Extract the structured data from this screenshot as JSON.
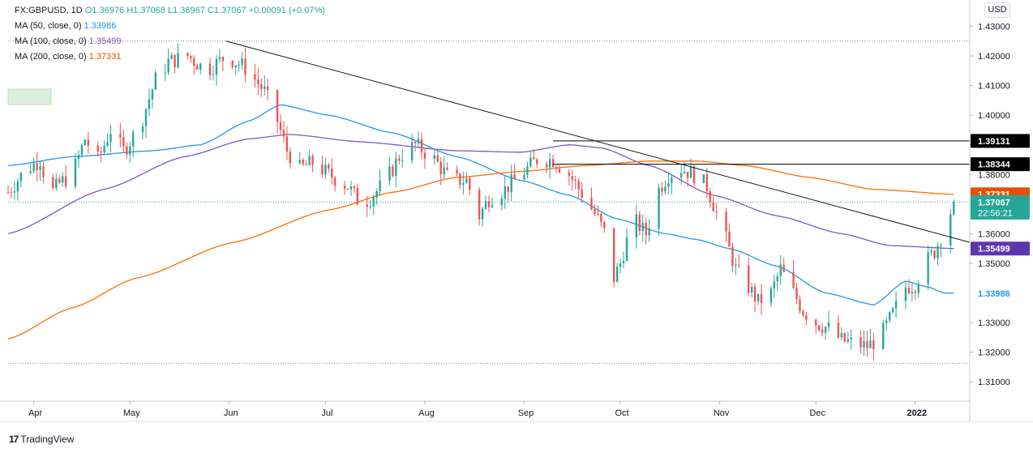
{
  "legend": {
    "symbol": "FX:GBPUSD, 1D",
    "open": "O1.36976",
    "high": "H1.37068",
    "low": "L1.36967",
    "close": "C1.37067",
    "change": "+0.00091 (+0.07%)",
    "ma50_label": "MA (50, close, 0)",
    "ma50_value": "1.33986",
    "ma100_label": "MA (100, close, 0)",
    "ma100_value": "1.35499",
    "ma200_label": "MA (200, close, 0)",
    "ma200_value": "1.37331"
  },
  "currency_button": "USD",
  "footer_brand": "TradingView",
  "chart_data": {
    "type": "candlestick",
    "title": "FX:GBPUSD, 1D",
    "ylim": [
      1.3035,
      1.4375
    ],
    "y_ticks": [
      "1.43000",
      "1.42000",
      "1.41000",
      "1.40000",
      "1.39000",
      "1.38000",
      "1.37000",
      "1.36000",
      "1.35000",
      "1.34000",
      "1.33000",
      "1.32000",
      "1.31000"
    ],
    "y_tick_values": [
      1.43,
      1.42,
      1.41,
      1.4,
      1.39,
      1.38,
      1.37,
      1.36,
      1.35,
      1.34,
      1.33,
      1.32,
      1.31
    ],
    "x_ticks": [
      {
        "label": "Apr",
        "day": 8
      },
      {
        "label": "May",
        "day": 38
      },
      {
        "label": "Jun",
        "day": 69
      },
      {
        "label": "Jul",
        "day": 99
      },
      {
        "label": "Aug",
        "day": 130
      },
      {
        "label": "Sep",
        "day": 161
      },
      {
        "label": "Oct",
        "day": 191
      },
      {
        "label": "Nov",
        "day": 222
      },
      {
        "label": "Dec",
        "day": 252
      },
      {
        "label": "2022",
        "day": 283
      }
    ],
    "day_range": [
      0,
      300
    ],
    "last_day": 295,
    "price_anchors": [
      [
        0,
        1.374
      ],
      [
        5,
        1.381
      ],
      [
        10,
        1.385
      ],
      [
        13,
        1.373
      ],
      [
        16,
        1.377
      ],
      [
        20,
        1.38
      ],
      [
        24,
        1.392
      ],
      [
        28,
        1.385
      ],
      [
        32,
        1.395
      ],
      [
        36,
        1.388
      ],
      [
        41,
        1.396
      ],
      [
        46,
        1.412
      ],
      [
        50,
        1.418
      ],
      [
        56,
        1.42
      ],
      [
        62,
        1.415
      ],
      [
        68,
        1.42
      ],
      [
        74,
        1.416
      ],
      [
        80,
        1.408
      ],
      [
        84,
        1.398
      ],
      [
        87,
        1.388
      ],
      [
        91,
        1.382
      ],
      [
        95,
        1.384
      ],
      [
        100,
        1.38
      ],
      [
        106,
        1.376
      ],
      [
        110,
        1.37
      ],
      [
        113,
        1.372
      ],
      [
        118,
        1.378
      ],
      [
        122,
        1.386
      ],
      [
        127,
        1.39
      ],
      [
        133,
        1.385
      ],
      [
        138,
        1.378
      ],
      [
        143,
        1.378
      ],
      [
        147,
        1.366
      ],
      [
        150,
        1.372
      ],
      [
        155,
        1.375
      ],
      [
        160,
        1.38
      ],
      [
        165,
        1.385
      ],
      [
        170,
        1.385
      ],
      [
        175,
        1.38
      ],
      [
        180,
        1.372
      ],
      [
        184,
        1.365
      ],
      [
        187,
        1.358
      ],
      [
        189,
        1.345
      ],
      [
        191,
        1.35
      ],
      [
        195,
        1.365
      ],
      [
        199,
        1.36
      ],
      [
        203,
        1.375
      ],
      [
        206,
        1.38
      ],
      [
        210,
        1.382
      ],
      [
        214,
        1.38
      ],
      [
        218,
        1.376
      ],
      [
        221,
        1.367
      ],
      [
        224,
        1.358
      ],
      [
        227,
        1.348
      ],
      [
        231,
        1.342
      ],
      [
        234,
        1.337
      ],
      [
        238,
        1.34
      ],
      [
        241,
        1.348
      ],
      [
        244,
        1.342
      ],
      [
        248,
        1.334
      ],
      [
        252,
        1.33
      ],
      [
        256,
        1.328
      ],
      [
        260,
        1.324
      ],
      [
        264,
        1.323
      ],
      [
        268,
        1.322
      ],
      [
        272,
        1.325
      ],
      [
        276,
        1.333
      ],
      [
        280,
        1.342
      ],
      [
        283,
        1.343
      ],
      [
        286,
        1.35
      ],
      [
        289,
        1.354
      ],
      [
        291,
        1.359
      ],
      [
        293,
        1.364
      ],
      [
        295,
        1.3707
      ]
    ],
    "hlines": [
      {
        "label": "1.39131",
        "value": 1.39131
      },
      {
        "label": "1.38344",
        "value": 1.38344
      }
    ],
    "last_price_label": "1.37067",
    "last_price": 1.37067,
    "countdown": "22:56:21",
    "dotted_low": 1.3163,
    "trendline": {
      "from": [
        68,
        1.425
      ],
      "to": [
        300,
        1.3571
      ]
    },
    "series": [
      {
        "name": "MA (50, close, 0)",
        "color": "#2196F3",
        "label": "1.33986",
        "value": 1.33986,
        "points": [
          [
            0,
            1.383
          ],
          [
            20,
            1.386
          ],
          [
            45,
            1.388
          ],
          [
            60,
            1.39
          ],
          [
            75,
            1.398
          ],
          [
            85,
            1.4035
          ],
          [
            100,
            1.4
          ],
          [
            120,
            1.394
          ],
          [
            140,
            1.386
          ],
          [
            160,
            1.378
          ],
          [
            175,
            1.373
          ],
          [
            190,
            1.365
          ],
          [
            205,
            1.36
          ],
          [
            215,
            1.358
          ],
          [
            225,
            1.355
          ],
          [
            240,
            1.349
          ],
          [
            255,
            1.34
          ],
          [
            270,
            1.336
          ],
          [
            280,
            1.344
          ],
          [
            287,
            1.342
          ],
          [
            292,
            1.34
          ],
          [
            295,
            1.3399
          ]
        ]
      },
      {
        "name": "MA (100, close, 0)",
        "color": "#7E57C2",
        "label": "1.35499",
        "value": 1.35499,
        "points": [
          [
            0,
            1.36
          ],
          [
            30,
            1.375
          ],
          [
            55,
            1.386
          ],
          [
            75,
            1.392
          ],
          [
            88,
            1.3935
          ],
          [
            110,
            1.391
          ],
          [
            140,
            1.388
          ],
          [
            160,
            1.3875
          ],
          [
            175,
            1.39
          ],
          [
            185,
            1.389
          ],
          [
            200,
            1.383
          ],
          [
            220,
            1.373
          ],
          [
            240,
            1.366
          ],
          [
            260,
            1.36
          ],
          [
            275,
            1.356
          ],
          [
            295,
            1.355
          ]
        ]
      },
      {
        "name": "MA (200, close, 0)",
        "color": "#FF6D00",
        "label": "1.37331",
        "value": 1.37331,
        "points": [
          [
            0,
            1.3245
          ],
          [
            20,
            1.335
          ],
          [
            40,
            1.345
          ],
          [
            70,
            1.357
          ],
          [
            100,
            1.368
          ],
          [
            120,
            1.374
          ],
          [
            140,
            1.379
          ],
          [
            160,
            1.381
          ],
          [
            180,
            1.383
          ],
          [
            200,
            1.3845
          ],
          [
            215,
            1.3845
          ],
          [
            230,
            1.383
          ],
          [
            250,
            1.379
          ],
          [
            270,
            1.375
          ],
          [
            295,
            1.3733
          ]
        ]
      }
    ]
  }
}
